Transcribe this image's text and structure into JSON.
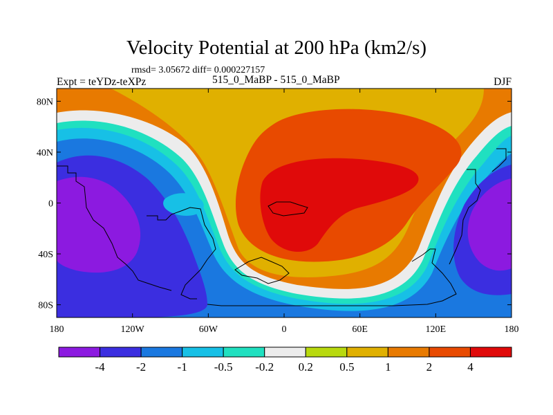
{
  "chart_data": {
    "type": "heatmap",
    "title": "Velocity Potential at 200 hPa (km2/s)",
    "subtitle": "rmsd= 3.05672 diff= 0.000227157",
    "left_label": "Expt = teYDz-teXPz",
    "center_label": "515_0_MaBP - 515_0_MaBP",
    "right_label": "DJF",
    "x_ticks": [
      "180",
      "120W",
      "60W",
      "0",
      "60E",
      "120E",
      "180"
    ],
    "x_tick_values": [
      -180,
      -120,
      -60,
      0,
      60,
      120,
      180
    ],
    "y_ticks": [
      "80N",
      "40N",
      "0",
      "40S",
      "80S"
    ],
    "y_tick_values": [
      80,
      40,
      0,
      -40,
      -80
    ],
    "xlim": [
      -180,
      180
    ],
    "ylim": [
      -90,
      90
    ],
    "colorbar": {
      "levels": [
        -4,
        -2,
        -1,
        -0.5,
        -0.2,
        0.2,
        0.5,
        1,
        2,
        4
      ],
      "labels": [
        "-4",
        "-2",
        "-1",
        "-0.5",
        "-0.2",
        "0.2",
        "0.5",
        "1",
        "2",
        "4"
      ],
      "colors": [
        "#8c1ae0",
        "#3b2ee0",
        "#1a78e0",
        "#17c0e6",
        "#20e0c0",
        "#ececec",
        "#b8d90e",
        "#e0b000",
        "#e87a00",
        "#e84a00",
        "#e00a0a"
      ]
    },
    "features": [
      {
        "name": "negative-center-central-pacific",
        "lon": -160,
        "lat": -15,
        "value": -4.5
      },
      {
        "name": "negative-center-western-pacific",
        "lon": 165,
        "lat": -10,
        "value": -4.5
      },
      {
        "name": "positive-center-africa-indian-ocean",
        "lon": 30,
        "lat": 5,
        "value": 4.5
      }
    ]
  }
}
